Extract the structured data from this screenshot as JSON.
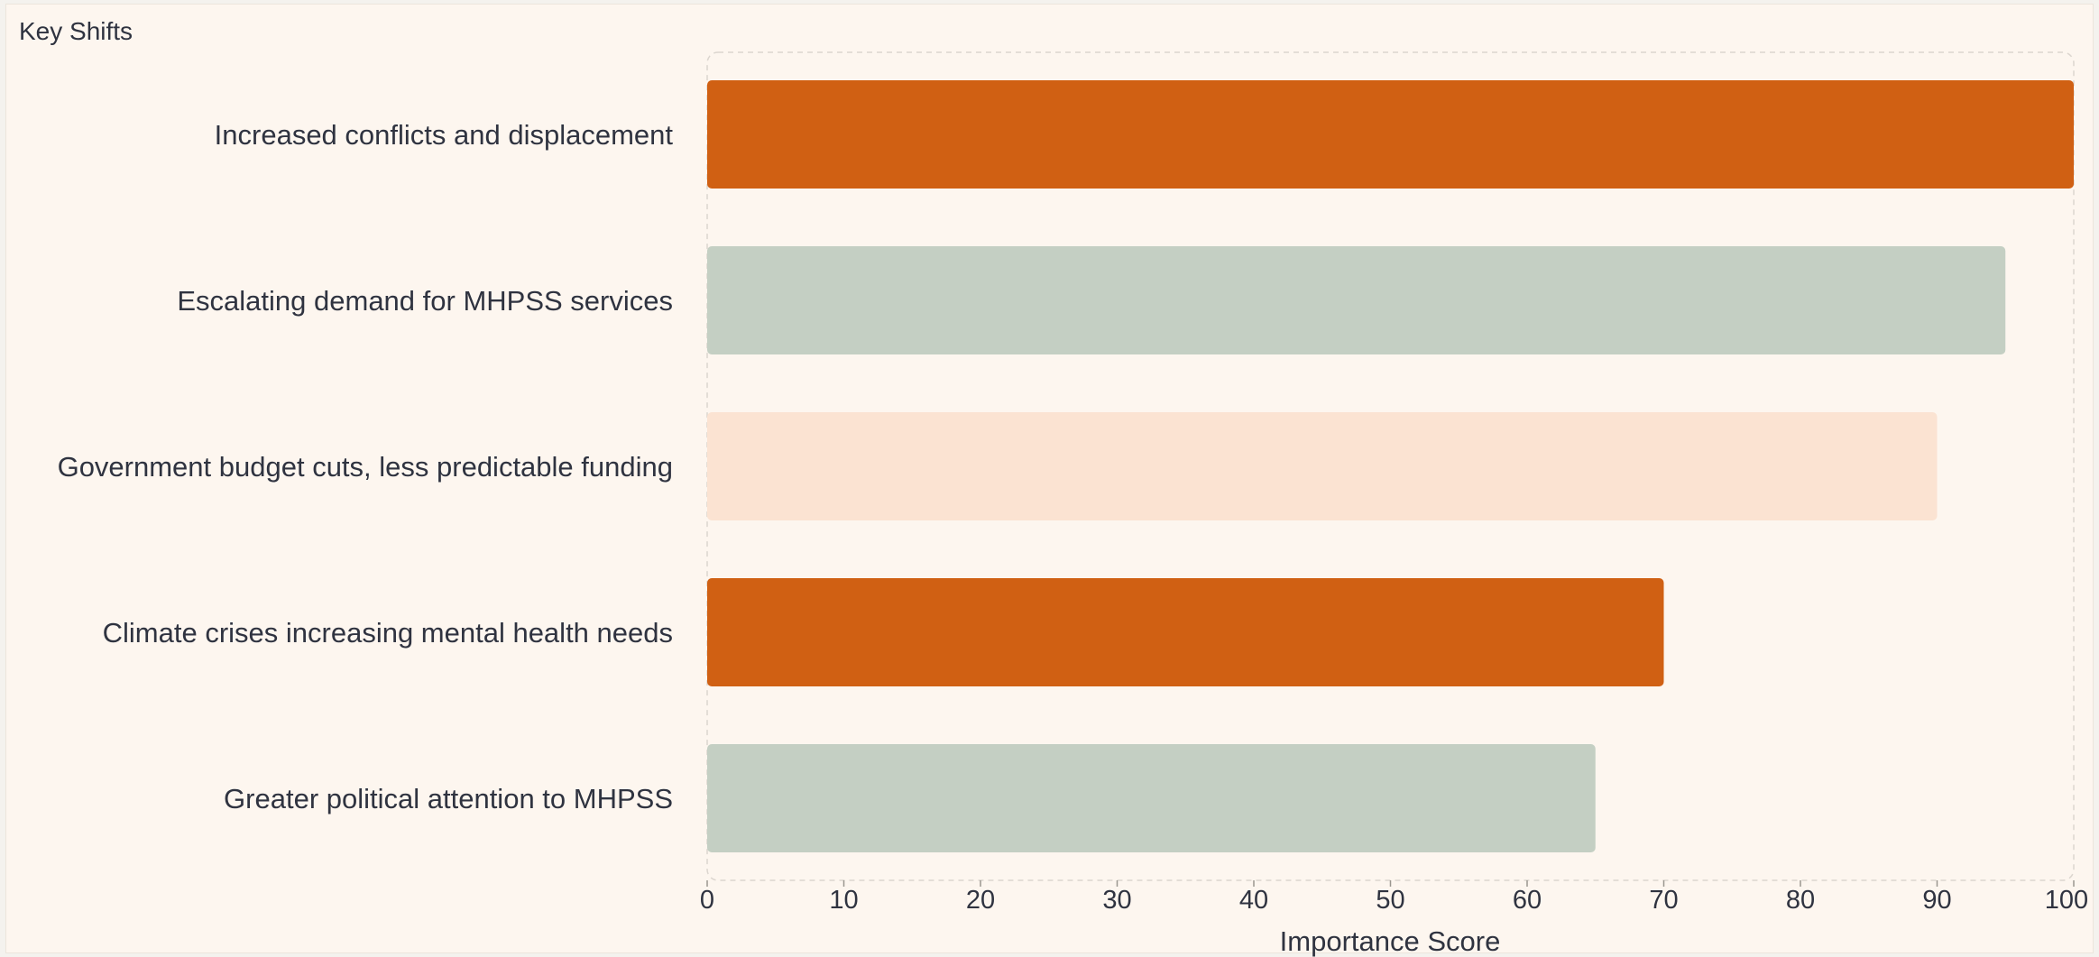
{
  "panel": {
    "title": "Key Shifts"
  },
  "chart_data": {
    "type": "bar",
    "orientation": "horizontal",
    "categories": [
      "Increased conflicts and displacement",
      "Escalating demand for MHPSS services",
      "Government budget cuts, less predictable funding",
      "Climate crises increasing mental health needs",
      "Greater political attention to MHPSS"
    ],
    "values": [
      100,
      95,
      90,
      70,
      65
    ],
    "colors": [
      "#d06013",
      "#c4cfc3",
      "#fbe3d2",
      "#d06013",
      "#c4cfc3"
    ],
    "xlabel": "Importance Score",
    "ylabel": "",
    "xlim": [
      0,
      100
    ],
    "xticks": [
      "0",
      "10",
      "20",
      "30",
      "40",
      "50",
      "60",
      "70",
      "80",
      "90",
      "100"
    ],
    "grid": false,
    "legend": "none"
  }
}
